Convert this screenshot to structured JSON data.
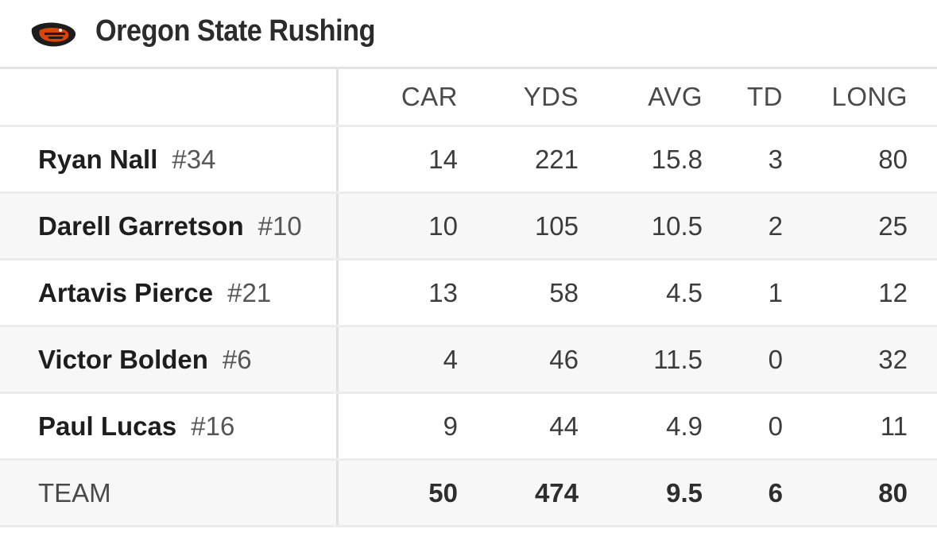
{
  "header": {
    "title": "Oregon State Rushing",
    "logo_icon": "beaver-logo-icon",
    "brand_color": "#dc4405"
  },
  "columns": [
    "CAR",
    "YDS",
    "AVG",
    "TD",
    "LONG"
  ],
  "players": [
    {
      "name": "Ryan Nall",
      "number": "#34",
      "car": "14",
      "yds": "221",
      "avg": "15.8",
      "td": "3",
      "long": "80"
    },
    {
      "name": "Darell Garretson",
      "number": "#10",
      "car": "10",
      "yds": "105",
      "avg": "10.5",
      "td": "2",
      "long": "25"
    },
    {
      "name": "Artavis Pierce",
      "number": "#21",
      "car": "13",
      "yds": "58",
      "avg": "4.5",
      "td": "1",
      "long": "12"
    },
    {
      "name": "Victor Bolden",
      "number": "#6",
      "car": "4",
      "yds": "46",
      "avg": "11.5",
      "td": "0",
      "long": "32"
    },
    {
      "name": "Paul Lucas",
      "number": "#16",
      "car": "9",
      "yds": "44",
      "avg": "4.9",
      "td": "0",
      "long": "11"
    }
  ],
  "team": {
    "label": "TEAM",
    "car": "50",
    "yds": "474",
    "avg": "9.5",
    "td": "6",
    "long": "80"
  }
}
